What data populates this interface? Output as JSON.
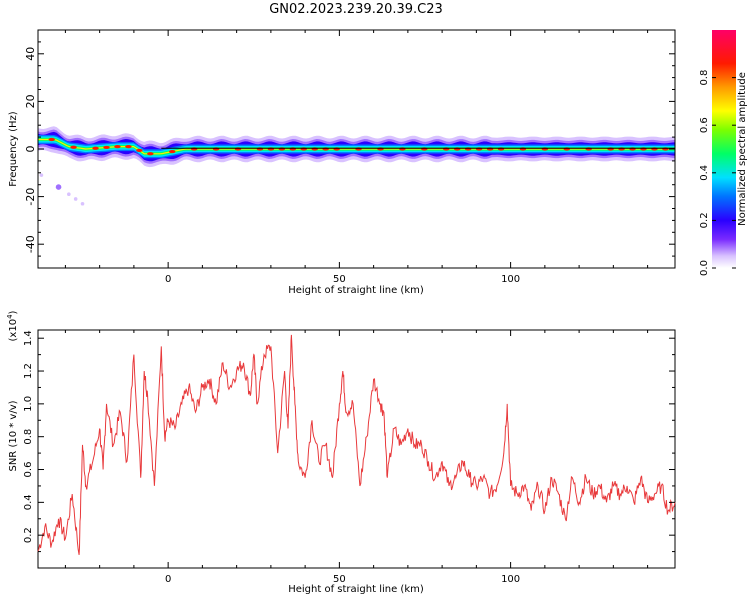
{
  "title": "GN02.2023.239.20.39.C23",
  "chart_data": [
    {
      "type": "heatmap",
      "xlabel": "Height of straight line (km)",
      "ylabel": "Frequency (Hz)",
      "xlim": [
        -38,
        148
      ],
      "ylim": [
        -50,
        50
      ],
      "x_ticks": [
        0,
        50,
        100
      ],
      "y_ticks": [
        40,
        20,
        0,
        -20,
        -40
      ],
      "colorbar": {
        "label": "Normalized spectral amplitude",
        "range": [
          0,
          1
        ],
        "ticks": [
          0.0,
          0.2,
          0.4,
          0.6,
          0.8
        ],
        "colors": [
          "#ffffff",
          "#b48cff",
          "#3c00ff",
          "#0066ff",
          "#00e5ff",
          "#00ff66",
          "#66ff00",
          "#ffff00",
          "#ff9900",
          "#ff0000",
          "#ff0066"
        ]
      },
      "ridge": [
        {
          "x": -38,
          "f": 4
        },
        {
          "x": -33,
          "f": 4
        },
        {
          "x": -29,
          "f": 1
        },
        {
          "x": -24,
          "f": 0
        },
        {
          "x": -15,
          "f": 1
        },
        {
          "x": -10,
          "f": 1
        },
        {
          "x": -7,
          "f": -2
        },
        {
          "x": -2,
          "f": -2
        },
        {
          "x": 5,
          "f": 0
        },
        {
          "x": 148,
          "f": 0
        }
      ],
      "scatter_points": [
        {
          "x": -37,
          "f": -11
        },
        {
          "x": -32,
          "f": -16
        },
        {
          "x": -29,
          "f": -19
        },
        {
          "x": -27,
          "f": -21
        },
        {
          "x": -25,
          "f": -23
        }
      ]
    },
    {
      "type": "line",
      "xlabel": "Height of straight line (km)",
      "ylabel": "SNR (10 * v/v)",
      "y_scale_label": "(x10",
      "y_scale_exp": "4",
      "y_scale_close": ")",
      "xlim": [
        -38,
        148
      ],
      "ylim": [
        0,
        1.45
      ],
      "x_ticks": [
        0,
        50,
        100
      ],
      "y_ticks": [
        0.2,
        0.4,
        0.6,
        0.8,
        1.0,
        1.2,
        1.4
      ],
      "series": [
        {
          "color": "#e8393b",
          "x": [
            -38,
            -36,
            -34,
            -32,
            -30,
            -28,
            -26,
            -25,
            -24,
            -22,
            -20,
            -19,
            -18,
            -16,
            -14,
            -12,
            -10,
            -8,
            -7,
            -6,
            -4,
            -2,
            -1,
            0,
            2,
            4,
            6,
            8,
            10,
            12,
            14,
            16,
            18,
            20,
            22,
            24,
            25,
            26,
            28,
            30,
            32,
            34,
            35,
            36,
            37,
            38,
            40,
            42,
            44,
            46,
            48,
            50,
            51,
            52,
            54,
            56,
            58,
            60,
            62,
            63,
            64,
            66,
            68,
            70,
            72,
            74,
            76,
            78,
            80,
            82,
            84,
            86,
            88,
            90,
            92,
            94,
            96,
            98,
            99,
            100,
            102,
            104,
            106,
            108,
            110,
            112,
            114,
            116,
            118,
            120,
            122,
            124,
            126,
            128,
            130,
            132,
            134,
            136,
            138,
            140,
            142,
            144,
            146,
            148
          ],
          "y": [
            0.1,
            0.25,
            0.15,
            0.3,
            0.18,
            0.45,
            0.08,
            0.75,
            0.5,
            0.65,
            0.85,
            0.6,
            1.0,
            0.75,
            0.95,
            0.65,
            1.3,
            0.55,
            1.2,
            1.05,
            0.5,
            1.35,
            0.8,
            0.9,
            0.85,
            1.0,
            1.1,
            0.95,
            1.1,
            1.15,
            1.0,
            1.25,
            1.1,
            1.2,
            1.25,
            1.05,
            1.3,
            1.0,
            1.3,
            1.35,
            0.7,
            1.2,
            0.85,
            1.42,
            1.0,
            0.65,
            0.55,
            0.9,
            0.65,
            0.75,
            0.55,
            1.0,
            1.2,
            0.95,
            1.0,
            0.5,
            0.8,
            1.15,
            1.0,
            0.95,
            0.55,
            0.85,
            0.75,
            0.85,
            0.75,
            0.75,
            0.65,
            0.55,
            0.65,
            0.5,
            0.55,
            0.65,
            0.55,
            0.5,
            0.55,
            0.45,
            0.5,
            0.7,
            1.0,
            0.5,
            0.45,
            0.5,
            0.35,
            0.5,
            0.35,
            0.55,
            0.45,
            0.3,
            0.55,
            0.4,
            0.55,
            0.45,
            0.5,
            0.4,
            0.5,
            0.45,
            0.5,
            0.4,
            0.55,
            0.4,
            0.45,
            0.5,
            0.35,
            0.4
          ]
        }
      ]
    }
  ]
}
